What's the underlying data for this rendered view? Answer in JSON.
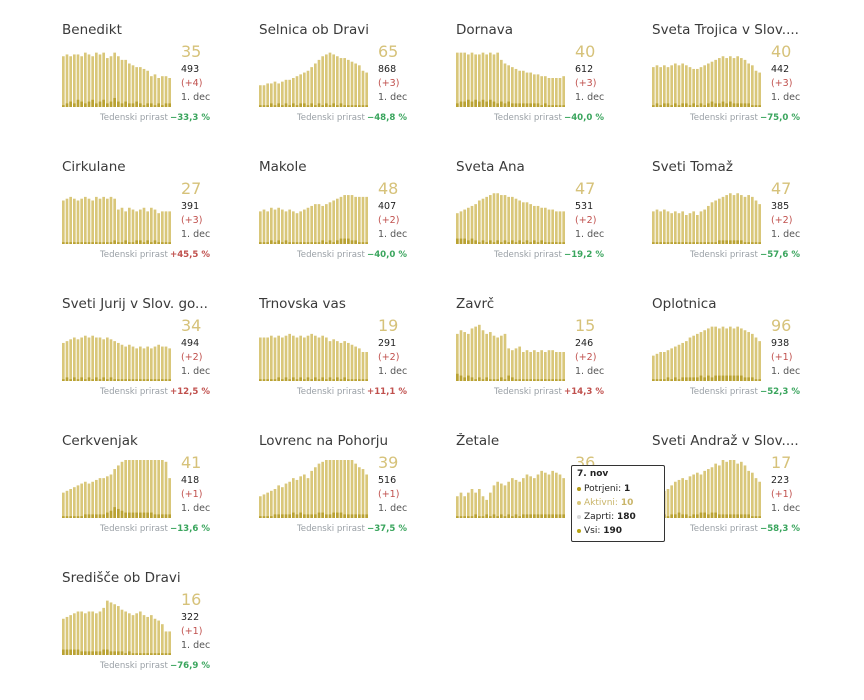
{
  "colors": {
    "potrjeni": "#b39a1a",
    "aktivni": "#d9c77a",
    "zaprti": "#d8d8d8",
    "vsi": "#b8a413",
    "bar": "#d9c77a",
    "bar_dark": "#b9a233",
    "negative_growth": "#3aa55d",
    "positive_growth": "#c0504d"
  },
  "growth_label": "Tedenski prirast",
  "chart_data": [
    {
      "type": "bar",
      "title": "Benedikt",
      "active": "35",
      "total": "493",
      "delta": "(+4)",
      "date": "1. dec",
      "growth": "−33,3 %",
      "growth_sign": "neg",
      "values": [
        28,
        29,
        28,
        29,
        29,
        28,
        30,
        29,
        28,
        30,
        29,
        30,
        27,
        28,
        30,
        28,
        26,
        26,
        24,
        23,
        22,
        22,
        21,
        20,
        17,
        18,
        16,
        17,
        17,
        16
      ],
      "small": [
        1,
        2,
        3,
        2,
        4,
        3,
        2,
        3,
        4,
        2,
        3,
        4,
        2,
        3,
        5,
        3,
        2,
        3,
        2,
        2,
        3,
        2,
        1,
        2,
        2,
        1,
        2,
        1,
        2,
        2
      ]
    },
    {
      "type": "bar",
      "title": "Selnica ob Dravi",
      "active": "65",
      "total": "868",
      "delta": "(+3)",
      "date": "1. dec",
      "growth": "−48,8 %",
      "growth_sign": "neg",
      "values": [
        12,
        12,
        13,
        13,
        14,
        13,
        14,
        15,
        15,
        16,
        17,
        18,
        19,
        20,
        22,
        24,
        26,
        28,
        29,
        30,
        29,
        28,
        27,
        27,
        26,
        25,
        24,
        23,
        20,
        19
      ],
      "small": [
        1,
        1,
        1,
        2,
        1,
        2,
        1,
        2,
        1,
        2,
        1,
        2,
        2,
        1,
        2,
        1,
        2,
        1,
        2,
        1,
        2,
        1,
        2,
        1,
        1,
        1,
        1,
        1,
        1,
        1
      ]
    },
    {
      "type": "bar",
      "title": "Dornava",
      "active": "40",
      "total": "612",
      "delta": "(+3)",
      "date": "1. dec",
      "growth": "−40,0 %",
      "growth_sign": "neg",
      "values": [
        30,
        30,
        30,
        29,
        30,
        29,
        29,
        30,
        29,
        30,
        29,
        30,
        26,
        24,
        23,
        22,
        21,
        20,
        20,
        19,
        19,
        18,
        18,
        17,
        17,
        16,
        16,
        16,
        16,
        17
      ],
      "small": [
        2,
        3,
        3,
        4,
        3,
        4,
        3,
        4,
        3,
        4,
        3,
        2,
        3,
        2,
        3,
        2,
        2,
        2,
        2,
        2,
        2,
        2,
        2,
        1,
        2,
        1,
        1,
        1,
        1,
        1
      ]
    },
    {
      "type": "bar",
      "title": "Sveta Trojica v Slov....",
      "active": "40",
      "total": "442",
      "delta": "(+3)",
      "date": "1. dec",
      "growth": "−75,0 %",
      "growth_sign": "neg",
      "values": [
        22,
        23,
        22,
        23,
        22,
        23,
        24,
        23,
        24,
        23,
        22,
        21,
        21,
        22,
        23,
        24,
        25,
        26,
        27,
        28,
        27,
        28,
        27,
        28,
        27,
        26,
        24,
        23,
        20,
        19
      ],
      "small": [
        1,
        2,
        1,
        2,
        2,
        1,
        2,
        1,
        2,
        2,
        1,
        2,
        1,
        2,
        1,
        2,
        3,
        2,
        2,
        3,
        2,
        3,
        2,
        2,
        2,
        2,
        2,
        1,
        1,
        1
      ]
    },
    {
      "type": "bar",
      "title": "Cirkulane",
      "active": "27",
      "total": "391",
      "delta": "(+3)",
      "date": "1. dec",
      "growth": "+45,5 %",
      "growth_sign": "pos",
      "values": [
        24,
        25,
        26,
        25,
        24,
        25,
        26,
        25,
        24,
        26,
        25,
        26,
        25,
        26,
        25,
        19,
        20,
        18,
        20,
        19,
        18,
        19,
        20,
        18,
        20,
        19,
        17,
        18,
        18,
        18
      ],
      "small": [
        1,
        1,
        1,
        1,
        1,
        1,
        1,
        1,
        1,
        1,
        1,
        1,
        1,
        1,
        2,
        1,
        1,
        2,
        1,
        1,
        2,
        2,
        1,
        2,
        1,
        2,
        1,
        1,
        1,
        1
      ]
    },
    {
      "type": "bar",
      "title": "Makole",
      "active": "48",
      "total": "407",
      "delta": "(+2)",
      "date": "1. dec",
      "growth": "−40,0 %",
      "growth_sign": "neg",
      "values": [
        18,
        19,
        18,
        20,
        19,
        20,
        19,
        18,
        19,
        18,
        17,
        18,
        19,
        20,
        21,
        22,
        22,
        21,
        22,
        23,
        24,
        25,
        26,
        27,
        27,
        27,
        26,
        26,
        26,
        26
      ],
      "small": [
        1,
        1,
        1,
        2,
        1,
        2,
        1,
        2,
        1,
        1,
        1,
        1,
        1,
        1,
        1,
        1,
        1,
        2,
        1,
        2,
        1,
        2,
        3,
        3,
        3,
        2,
        2,
        1,
        1,
        1
      ]
    },
    {
      "type": "bar",
      "title": "Sveta Ana",
      "active": "47",
      "total": "531",
      "delta": "(+2)",
      "date": "1. dec",
      "growth": "−19,2 %",
      "growth_sign": "neg",
      "values": [
        17,
        18,
        19,
        20,
        21,
        22,
        24,
        25,
        26,
        27,
        28,
        28,
        27,
        27,
        26,
        26,
        25,
        24,
        23,
        23,
        22,
        21,
        21,
        20,
        20,
        19,
        19,
        18,
        18,
        18
      ],
      "small": [
        3,
        3,
        3,
        2,
        3,
        2,
        1,
        2,
        1,
        2,
        1,
        2,
        1,
        2,
        1,
        2,
        1,
        2,
        1,
        2,
        1,
        2,
        1,
        2,
        1,
        1,
        1,
        1,
        1,
        1
      ]
    },
    {
      "type": "bar",
      "title": "Sveti Tomaž",
      "active": "47",
      "total": "385",
      "delta": "(+2)",
      "date": "1. dec",
      "growth": "−57,6 %",
      "growth_sign": "neg",
      "values": [
        18,
        19,
        18,
        19,
        18,
        17,
        18,
        17,
        18,
        16,
        17,
        18,
        16,
        18,
        19,
        21,
        23,
        24,
        25,
        26,
        27,
        28,
        27,
        28,
        27,
        26,
        27,
        26,
        24,
        22
      ],
      "small": [
        1,
        1,
        1,
        1,
        1,
        1,
        1,
        1,
        1,
        1,
        1,
        1,
        1,
        1,
        1,
        1,
        1,
        1,
        2,
        2,
        2,
        2,
        2,
        2,
        2,
        1,
        1,
        1,
        1,
        1
      ]
    },
    {
      "type": "bar",
      "title": "Sveti Jurij v Slov. go...",
      "active": "34",
      "total": "494",
      "delta": "(+2)",
      "date": "1. dec",
      "growth": "+12,5 %",
      "growth_sign": "pos",
      "values": [
        21,
        22,
        23,
        24,
        23,
        24,
        25,
        24,
        25,
        24,
        24,
        23,
        24,
        23,
        22,
        21,
        20,
        19,
        20,
        19,
        18,
        19,
        18,
        19,
        18,
        19,
        20,
        19,
        19,
        18
      ],
      "small": [
        1,
        2,
        1,
        2,
        1,
        2,
        1,
        2,
        1,
        2,
        1,
        2,
        1,
        2,
        1,
        1,
        1,
        1,
        1,
        1,
        1,
        1,
        1,
        1,
        1,
        1,
        1,
        1,
        1,
        1
      ]
    },
    {
      "type": "bar",
      "title": "Trnovska vas",
      "active": "19",
      "total": "291",
      "delta": "(+2)",
      "date": "1. dec",
      "growth": "+11,1 %",
      "growth_sign": "pos",
      "values": [
        24,
        24,
        24,
        25,
        24,
        25,
        24,
        25,
        26,
        25,
        24,
        25,
        24,
        25,
        26,
        25,
        24,
        25,
        24,
        22,
        23,
        22,
        21,
        22,
        21,
        20,
        19,
        18,
        16,
        16
      ],
      "small": [
        1,
        1,
        1,
        1,
        1,
        2,
        1,
        2,
        1,
        2,
        1,
        2,
        1,
        2,
        1,
        2,
        1,
        2,
        1,
        2,
        1,
        2,
        1,
        2,
        1,
        1,
        1,
        1,
        1,
        1
      ]
    },
    {
      "type": "bar",
      "title": "Zavrč",
      "active": "15",
      "total": "246",
      "delta": "(+2)",
      "date": "1. dec",
      "growth": "+14,3 %",
      "growth_sign": "pos",
      "values": [
        26,
        28,
        27,
        26,
        29,
        30,
        31,
        28,
        26,
        27,
        25,
        24,
        25,
        26,
        18,
        17,
        18,
        19,
        16,
        17,
        16,
        17,
        16,
        17,
        16,
        17,
        17,
        16,
        16,
        16
      ],
      "small": [
        4,
        3,
        2,
        3,
        2,
        1,
        2,
        1,
        2,
        1,
        1,
        1,
        2,
        1,
        3,
        2,
        1,
        1,
        1,
        1,
        1,
        1,
        1,
        1,
        1,
        1,
        1,
        1,
        1,
        1
      ]
    },
    {
      "type": "bar",
      "title": "Oplotnica",
      "active": "96",
      "total": "938",
      "delta": "(+1)",
      "date": "1. dec",
      "growth": "−52,3 %",
      "growth_sign": "neg",
      "values": [
        14,
        15,
        16,
        16,
        17,
        18,
        19,
        20,
        21,
        22,
        24,
        25,
        26,
        27,
        28,
        29,
        30,
        30,
        29,
        30,
        29,
        30,
        29,
        30,
        29,
        28,
        27,
        26,
        24,
        22
      ],
      "small": [
        1,
        1,
        1,
        1,
        2,
        1,
        2,
        1,
        2,
        2,
        2,
        2,
        2,
        3,
        2,
        3,
        2,
        3,
        3,
        3,
        3,
        3,
        3,
        3,
        3,
        2,
        2,
        2,
        1,
        1
      ]
    },
    {
      "type": "bar",
      "title": "Cerkvenjak",
      "active": "41",
      "total": "418",
      "delta": "(+1)",
      "date": "1. dec",
      "growth": "−13,6 %",
      "growth_sign": "neg",
      "values": [
        14,
        15,
        16,
        17,
        18,
        19,
        20,
        19,
        20,
        21,
        22,
        22,
        23,
        24,
        27,
        29,
        31,
        32,
        33,
        34,
        35,
        34,
        35,
        34,
        35,
        34,
        35,
        33,
        31,
        22
      ],
      "small": [
        1,
        1,
        1,
        1,
        1,
        1,
        2,
        2,
        2,
        2,
        2,
        2,
        3,
        4,
        6,
        5,
        4,
        3,
        3,
        3,
        3,
        3,
        3,
        3,
        3,
        2,
        2,
        2,
        2,
        2
      ]
    },
    {
      "type": "bar",
      "title": "Lovrenc na Pohorju",
      "active": "39",
      "total": "516",
      "delta": "(+1)",
      "date": "1. dec",
      "growth": "−37,5 %",
      "growth_sign": "neg",
      "values": [
        12,
        13,
        14,
        15,
        16,
        18,
        17,
        19,
        20,
        22,
        21,
        23,
        24,
        22,
        26,
        28,
        30,
        31,
        33,
        34,
        35,
        34,
        35,
        34,
        33,
        32,
        30,
        28,
        27,
        24
      ],
      "small": [
        1,
        1,
        1,
        1,
        2,
        2,
        2,
        2,
        2,
        3,
        2,
        3,
        2,
        2,
        2,
        2,
        3,
        3,
        2,
        2,
        3,
        3,
        3,
        2,
        2,
        2,
        2,
        2,
        2,
        2
      ]
    },
    {
      "type": "bar",
      "title": "Žetale",
      "active": "36",
      "total": "",
      "delta": "",
      "date": "",
      "growth": "",
      "growth_sign": "neg",
      "values": [
        12,
        14,
        12,
        14,
        16,
        14,
        16,
        12,
        10,
        14,
        18,
        20,
        19,
        18,
        20,
        22,
        21,
        20,
        22,
        24,
        23,
        22,
        24,
        26,
        25,
        24,
        26,
        25,
        24,
        22
      ],
      "small": [
        1,
        1,
        1,
        1,
        1,
        2,
        1,
        1,
        2,
        1,
        2,
        1,
        2,
        1,
        2,
        1,
        2,
        1,
        2,
        2,
        2,
        2,
        2,
        2,
        2,
        2,
        2,
        2,
        2,
        2
      ]
    },
    {
      "type": "bar",
      "title": "Sveti Andraž v Slov....",
      "active": "17",
      "total": "223",
      "delta": "(+1)",
      "date": "1. dec",
      "growth": "−58,3 %",
      "growth_sign": "neg",
      "values": [
        12,
        13,
        14,
        15,
        16,
        18,
        20,
        21,
        22,
        21,
        23,
        24,
        25,
        24,
        26,
        27,
        28,
        30,
        29,
        32,
        31,
        33,
        32,
        30,
        31,
        29,
        26,
        25,
        22,
        20
      ],
      "small": [
        1,
        2,
        2,
        2,
        1,
        2,
        2,
        3,
        2,
        2,
        1,
        2,
        2,
        3,
        3,
        2,
        3,
        3,
        2,
        2,
        2,
        2,
        2,
        2,
        2,
        2,
        2,
        1,
        1,
        1
      ]
    },
    {
      "type": "bar",
      "title": "Središče ob Dravi",
      "active": "16",
      "total": "322",
      "delta": "(+1)",
      "date": "1. dec",
      "growth": "−76,9 %",
      "growth_sign": "neg",
      "values": [
        20,
        21,
        22,
        23,
        24,
        24,
        23,
        24,
        24,
        23,
        24,
        26,
        30,
        29,
        28,
        27,
        25,
        24,
        23,
        22,
        23,
        24,
        22,
        21,
        22,
        20,
        19,
        17,
        13,
        13
      ],
      "small": [
        3,
        3,
        3,
        3,
        3,
        2,
        2,
        2,
        2,
        2,
        2,
        3,
        3,
        2,
        2,
        2,
        2,
        1,
        2,
        1,
        1,
        1,
        1,
        1,
        1,
        1,
        1,
        1,
        1,
        1
      ]
    }
  ],
  "tooltip": {
    "date": "7. nov",
    "rows": [
      {
        "label": "Potrjeni:",
        "value": "1",
        "color": "#b39a1a"
      },
      {
        "label": "Aktivni:",
        "value": "10",
        "color": "#d9c77a"
      },
      {
        "label": "Zaprti:",
        "value": "180",
        "color": "#d8d8d8"
      },
      {
        "label": "Vsi:",
        "value": "190",
        "color": "#b8a413"
      }
    ]
  }
}
